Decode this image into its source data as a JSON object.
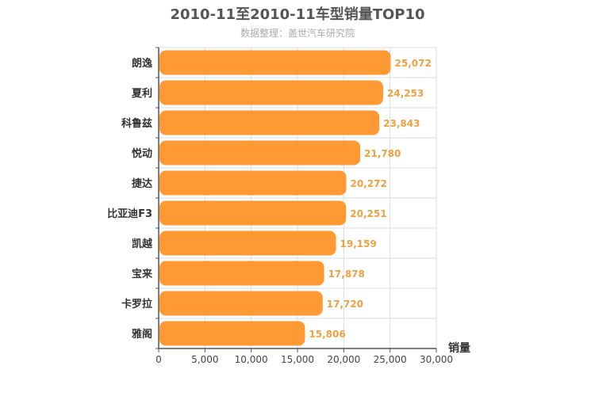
{
  "colors": {
    "bar": "#ff9933",
    "value_label": "#f0a040",
    "grid": "#dddddd",
    "axis": "#555555",
    "title": "#555555",
    "subtitle": "#aaaaaa"
  },
  "chart_data": {
    "type": "bar",
    "orientation": "horizontal",
    "title": "2010-11至2010-11车型销量TOP10",
    "subtitle": "数据整理：盖世汽车研究院",
    "xlabel": "销量",
    "ylabel": "",
    "categories": [
      "朗逸",
      "夏利",
      "科鲁兹",
      "悦动",
      "捷达",
      "比亚迪F3",
      "凯越",
      "宝来",
      "卡罗拉",
      "雅阁"
    ],
    "values": [
      25072,
      24253,
      23843,
      21780,
      20272,
      20251,
      19159,
      17878,
      17720,
      15806
    ],
    "value_labels": [
      "25,072",
      "24,253",
      "23,843",
      "21,780",
      "20,272",
      "20,251",
      "19,159",
      "17,878",
      "17,720",
      "15,806"
    ],
    "xlim": [
      0,
      30000
    ],
    "xticks": [
      0,
      5000,
      10000,
      15000,
      20000,
      25000,
      30000
    ],
    "xtick_labels": [
      "0",
      "5,000",
      "10,000",
      "15,000",
      "20,000",
      "25,000",
      "30,000"
    ],
    "grid": true,
    "legend": "none"
  }
}
